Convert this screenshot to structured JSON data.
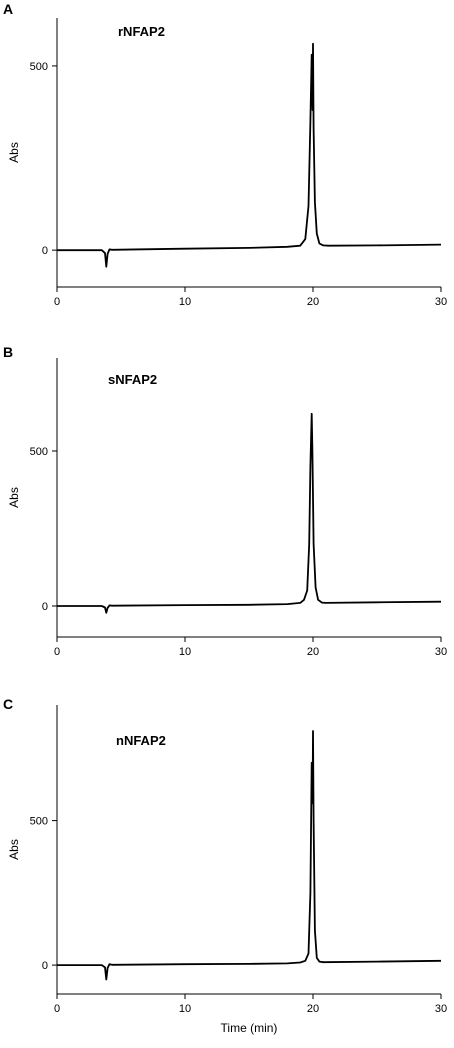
{
  "chart_data": [
    {
      "type": "line",
      "panel_label": "A",
      "annotation": "rNFAP2",
      "xlabel": "",
      "ylabel": "Abs",
      "xlim": [
        0,
        30
      ],
      "ylim": [
        -100,
        630
      ],
      "x_ticks": [
        0,
        10,
        20,
        30
      ],
      "y_ticks": [
        0,
        500
      ],
      "grid": false,
      "series": [
        {
          "x": [
            0,
            3.5,
            3.75,
            3.85,
            3.95,
            4.1,
            4.3,
            10,
            15,
            18,
            19.0,
            19.4,
            19.65,
            19.8,
            19.9,
            19.97,
            20.0,
            20.05,
            20.15,
            20.3,
            20.5,
            20.8,
            21.2,
            25,
            30
          ],
          "y": [
            0,
            0,
            -8,
            -45,
            -10,
            2,
            1,
            4,
            6,
            9,
            12,
            30,
            120,
            350,
            530,
            380,
            560,
            330,
            130,
            45,
            18,
            13,
            12,
            13,
            15
          ]
        }
      ]
    },
    {
      "type": "line",
      "panel_label": "B",
      "annotation": "sNFAP2",
      "xlabel": "",
      "ylabel": "Abs",
      "xlim": [
        0,
        30
      ],
      "ylim": [
        -100,
        800
      ],
      "x_ticks": [
        0,
        10,
        20,
        30
      ],
      "y_ticks": [
        0,
        500
      ],
      "grid": false,
      "series": [
        {
          "x": [
            0,
            3.5,
            3.75,
            3.85,
            3.95,
            4.1,
            4.3,
            10,
            15,
            18,
            19.0,
            19.3,
            19.55,
            19.7,
            19.8,
            19.9,
            19.95,
            20.05,
            20.2,
            20.4,
            20.7,
            21.0,
            25,
            30
          ],
          "y": [
            0,
            0,
            -5,
            -22,
            -6,
            2,
            1,
            3,
            4,
            6,
            10,
            20,
            50,
            200,
            450,
            620,
            500,
            200,
            60,
            20,
            11,
            10,
            12,
            14
          ]
        }
      ]
    },
    {
      "type": "line",
      "panel_label": "C",
      "annotation": "nNFAP2",
      "xlabel": "Time (min)",
      "ylabel": "Abs",
      "xlim": [
        0,
        30
      ],
      "ylim": [
        -100,
        900
      ],
      "x_ticks": [
        0,
        10,
        20,
        30
      ],
      "y_ticks": [
        0,
        500
      ],
      "grid": false,
      "series": [
        {
          "x": [
            0,
            3.5,
            3.75,
            3.85,
            3.95,
            4.1,
            4.3,
            10,
            15,
            18,
            19.0,
            19.4,
            19.65,
            19.8,
            19.9,
            19.97,
            20.0,
            20.05,
            20.15,
            20.3,
            20.5,
            20.8,
            25,
            30
          ],
          "y": [
            0,
            0,
            -8,
            -50,
            -10,
            3,
            1,
            3,
            4,
            6,
            9,
            15,
            40,
            250,
            700,
            560,
            810,
            500,
            120,
            25,
            12,
            10,
            12,
            15
          ]
        }
      ]
    }
  ]
}
